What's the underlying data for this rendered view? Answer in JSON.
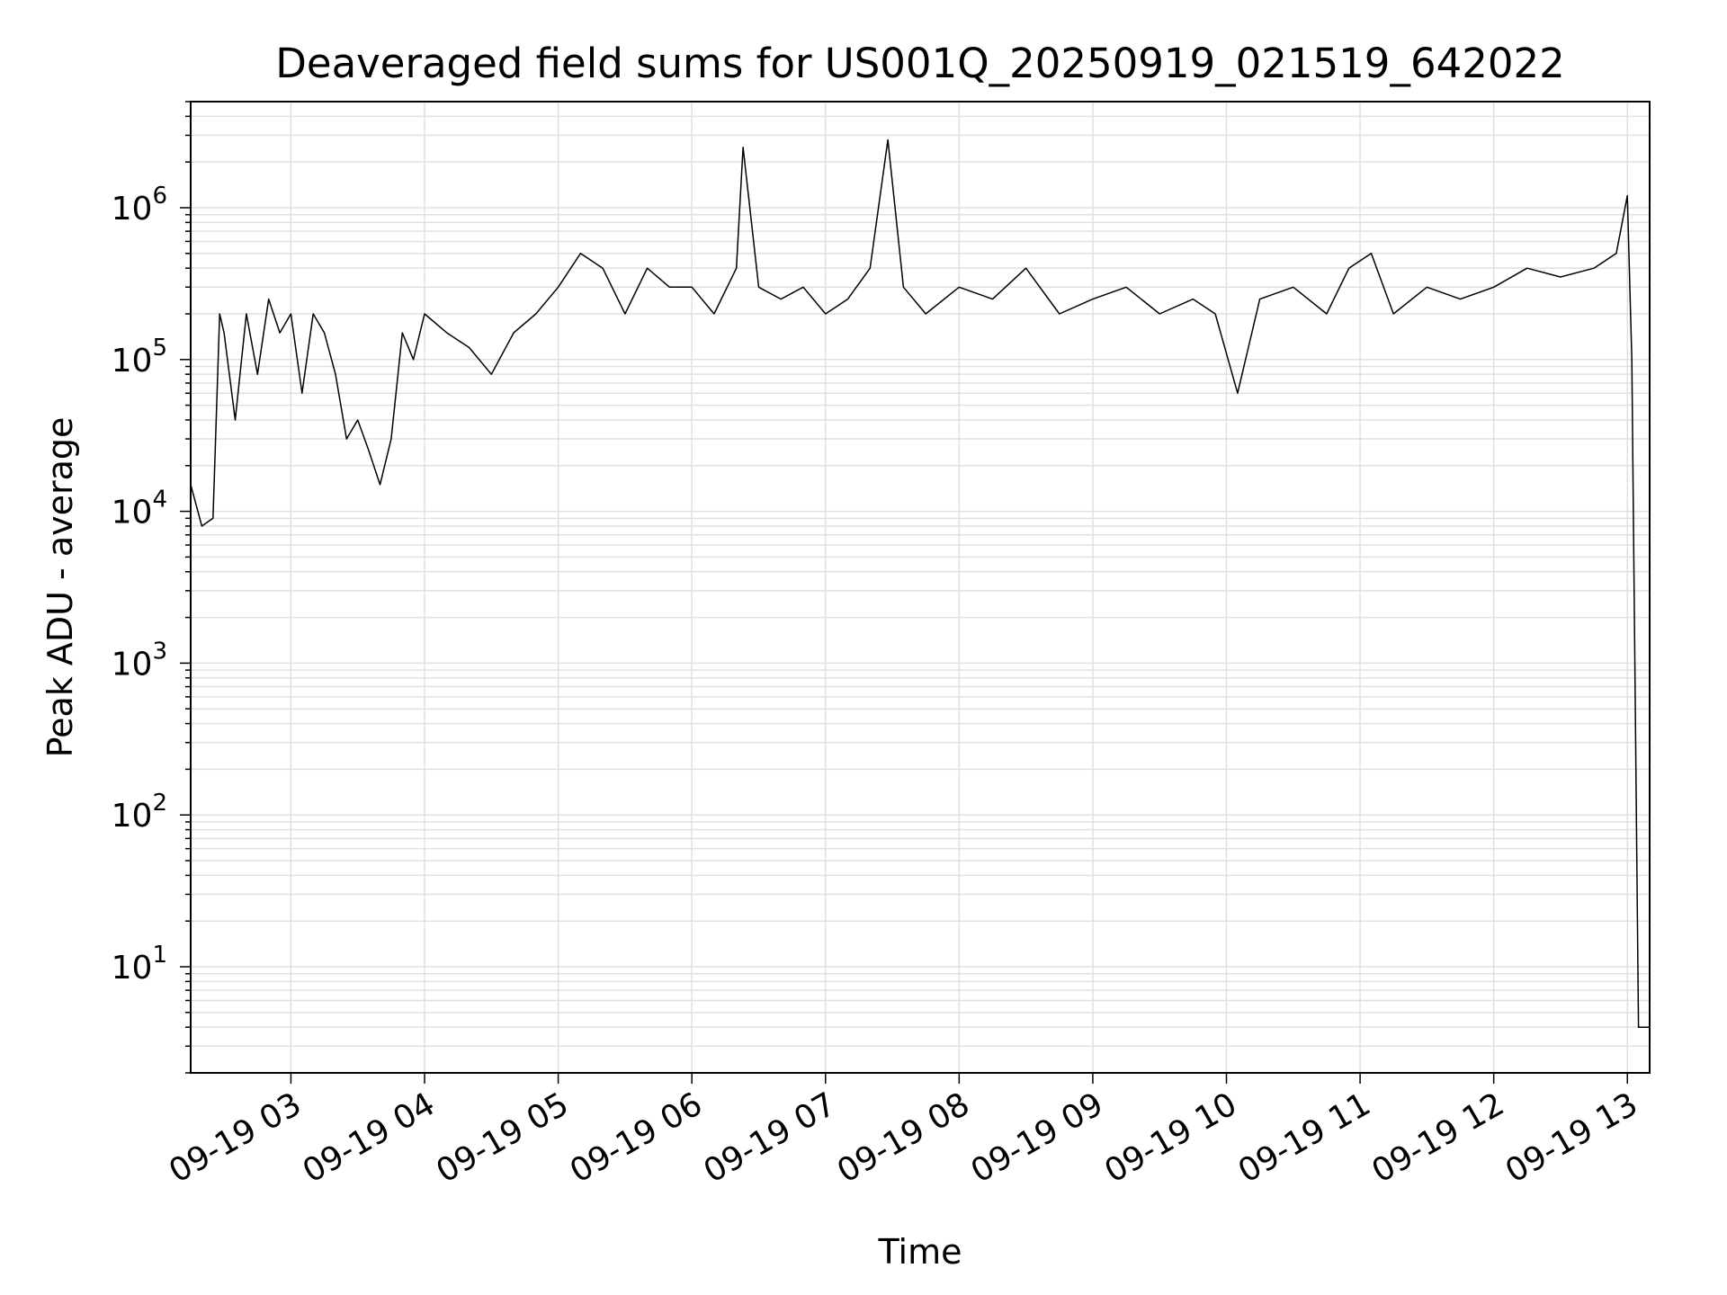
{
  "chart_data": {
    "type": "line",
    "title": "Deaveraged field sums for US001Q_20250919_021519_642022",
    "xlabel": "Time",
    "ylabel": "Peak ADU - average",
    "y_scale": "log",
    "ylim": [
      2,
      5000000
    ],
    "xlim": [
      "09-19 02:15",
      "09-19 13:10"
    ],
    "x_ticks": [
      "09-19 03",
      "09-19 04",
      "09-19 05",
      "09-19 06",
      "09-19 07",
      "09-19 08",
      "09-19 09",
      "09-19 10",
      "09-19 11",
      "09-19 12",
      "09-19 13"
    ],
    "y_ticks": [
      {
        "base": "10",
        "exp": "1",
        "value": 10
      },
      {
        "base": "10",
        "exp": "2",
        "value": 100
      },
      {
        "base": "10",
        "exp": "3",
        "value": 1000
      },
      {
        "base": "10",
        "exp": "4",
        "value": 10000
      },
      {
        "base": "10",
        "exp": "5",
        "value": 100000
      },
      {
        "base": "10",
        "exp": "6",
        "value": 1000000
      }
    ],
    "grid": true,
    "line_color": "#000000",
    "grid_color": "#e0e0e0",
    "series": [
      {
        "x": [
          "09-19 02:15",
          "09-19 02:20",
          "09-19 02:25",
          "09-19 02:28",
          "09-19 02:30",
          "09-19 02:35",
          "09-19 02:40",
          "09-19 02:45",
          "09-19 02:50",
          "09-19 02:55",
          "09-19 03:00",
          "09-19 03:05",
          "09-19 03:10",
          "09-19 03:15",
          "09-19 03:20",
          "09-19 03:25",
          "09-19 03:30",
          "09-19 03:35",
          "09-19 03:40",
          "09-19 03:45",
          "09-19 03:50",
          "09-19 03:55",
          "09-19 04:00",
          "09-19 04:10",
          "09-19 04:20",
          "09-19 04:30",
          "09-19 04:40",
          "09-19 04:50",
          "09-19 05:00",
          "09-19 05:10",
          "09-19 05:20",
          "09-19 05:30",
          "09-19 05:40",
          "09-19 05:50",
          "09-19 06:00",
          "09-19 06:10",
          "09-19 06:20",
          "09-19 06:23",
          "09-19 06:30",
          "09-19 06:40",
          "09-19 06:50",
          "09-19 07:00",
          "09-19 07:10",
          "09-19 07:20",
          "09-19 07:28",
          "09-19 07:35",
          "09-19 07:45",
          "09-19 08:00",
          "09-19 08:15",
          "09-19 08:30",
          "09-19 08:45",
          "09-19 09:00",
          "09-19 09:15",
          "09-19 09:30",
          "09-19 09:45",
          "09-19 09:55",
          "09-19 10:05",
          "09-19 10:15",
          "09-19 10:30",
          "09-19 10:45",
          "09-19 10:55",
          "09-19 11:05",
          "09-19 11:15",
          "09-19 11:30",
          "09-19 11:45",
          "09-19 12:00",
          "09-19 12:15",
          "09-19 12:30",
          "09-19 12:45",
          "09-19 12:55",
          "09-19 13:00",
          "09-19 13:02",
          "09-19 13:05",
          "09-19 13:10"
        ],
        "y": [
          15000,
          8000,
          9000,
          200000,
          150000,
          40000,
          200000,
          80000,
          250000,
          150000,
          200000,
          60000,
          200000,
          150000,
          80000,
          30000,
          40000,
          25000,
          15000,
          30000,
          150000,
          100000,
          200000,
          150000,
          120000,
          80000,
          150000,
          200000,
          300000,
          500000,
          400000,
          200000,
          400000,
          300000,
          300000,
          200000,
          400000,
          2500000,
          300000,
          250000,
          300000,
          200000,
          250000,
          400000,
          2800000,
          300000,
          200000,
          300000,
          250000,
          400000,
          200000,
          250000,
          300000,
          200000,
          250000,
          200000,
          60000,
          250000,
          300000,
          200000,
          400000,
          500000,
          200000,
          300000,
          250000,
          300000,
          400000,
          350000,
          400000,
          500000,
          1200000,
          100000,
          4,
          4
        ]
      }
    ]
  }
}
